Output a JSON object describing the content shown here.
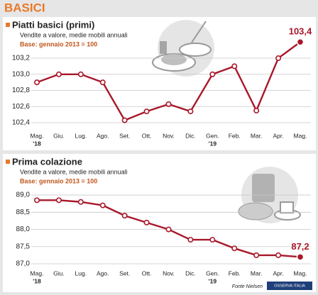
{
  "header": {
    "title": "BASICI"
  },
  "source": "Fonte Nielsen",
  "logo": "OSSERVA ITALIA",
  "chart_data": [
    {
      "type": "line",
      "title": "Piatti basici (primi)",
      "subtitle": "Vendite a valore, medie mobili annuali",
      "note": "Base: gennaio 2013 = 100",
      "categories": [
        "Mag.",
        "Giu.",
        "Lug.",
        "Ago.",
        "Set.",
        "Ott.",
        "Nov.",
        "Dic.",
        "Gen.",
        "Feb.",
        "Mar.",
        "Apr.",
        "Mag."
      ],
      "category_years": [
        "'18",
        null,
        null,
        null,
        null,
        null,
        null,
        null,
        "'19",
        null,
        null,
        null,
        null
      ],
      "series": [
        {
          "color": "#a8182a",
          "values": [
            102.9,
            103.0,
            103.0,
            102.9,
            102.43,
            102.54,
            102.63,
            102.54,
            103.0,
            103.1,
            102.55,
            103.2,
            103.4
          ],
          "value_labels": [
            null,
            null,
            null,
            null,
            null,
            null,
            null,
            null,
            null,
            null,
            null,
            null,
            "103,4"
          ]
        }
      ],
      "ylim": [
        102.3,
        103.5
      ],
      "yticks": [
        {
          "value": 102.4,
          "label": "102,4"
        },
        {
          "value": 102.6,
          "label": "102,6"
        },
        {
          "value": 102.8,
          "label": "102,8"
        },
        {
          "value": 103.0,
          "label": "103,0"
        },
        {
          "value": 103.2,
          "label": "103,2"
        }
      ],
      "grid": true
    },
    {
      "type": "line",
      "title": "Prima colazione",
      "subtitle": "Vendite a valore, medie mobili annuali",
      "note": "Base: gennaio 2013 = 100",
      "categories": [
        "Mag.",
        "Giu.",
        "Lug.",
        "Ago.",
        "Set.",
        "Ott.",
        "Nov.",
        "Dic.",
        "Gen.",
        "Feb.",
        "Mar.",
        "Apr.",
        "Mag."
      ],
      "category_years": [
        "'18",
        null,
        null,
        null,
        null,
        null,
        null,
        null,
        "'19",
        null,
        null,
        null,
        null
      ],
      "series": [
        {
          "color": "#a8182a",
          "values": [
            88.85,
            88.85,
            88.8,
            88.7,
            88.4,
            88.2,
            88.0,
            87.7,
            87.7,
            87.45,
            87.25,
            87.25,
            87.2
          ],
          "value_labels": [
            null,
            null,
            null,
            null,
            null,
            null,
            null,
            null,
            null,
            null,
            null,
            null,
            "87,2"
          ]
        }
      ],
      "ylim": [
        86.85,
        89.3
      ],
      "yticks": [
        {
          "value": 87.0,
          "label": "87,0"
        },
        {
          "value": 87.5,
          "label": "87,5"
        },
        {
          "value": 88.0,
          "label": "88,0"
        },
        {
          "value": 88.5,
          "label": "88,5"
        },
        {
          "value": 89.0,
          "label": "89,0"
        }
      ],
      "grid": true
    }
  ]
}
